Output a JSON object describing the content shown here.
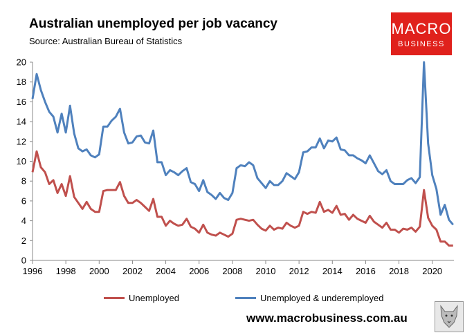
{
  "header": {
    "title": "Australian unemployed per job vacancy",
    "subtitle": "Source: Australian Bureau of Statistics"
  },
  "logo": {
    "line1": "MACRO",
    "line2": "BUSINESS"
  },
  "footer": {
    "url": "www.macrobusiness.com.au"
  },
  "colors": {
    "unemployed": "#c0504d",
    "underemployed": "#4f81bd",
    "logo_bg": "#e0211c"
  },
  "chart_data": {
    "type": "line",
    "title": "Australian unemployed per job vacancy",
    "xlim": [
      1996,
      2021.3
    ],
    "ylim": [
      0,
      20
    ],
    "xticks": [
      1996,
      1998,
      2000,
      2002,
      2004,
      2006,
      2008,
      2010,
      2012,
      2014,
      2016,
      2018,
      2020
    ],
    "yticks": [
      0,
      2,
      4,
      6,
      8,
      10,
      12,
      14,
      16,
      18,
      20
    ],
    "grid": false,
    "legend": "bottom",
    "series": [
      {
        "name": "Unemployed",
        "color": "#c0504d",
        "points": [
          [
            1996.0,
            8.9
          ],
          [
            1996.25,
            11.0
          ],
          [
            1996.5,
            9.4
          ],
          [
            1996.75,
            8.9
          ],
          [
            1997.0,
            7.7
          ],
          [
            1997.25,
            8.1
          ],
          [
            1997.5,
            6.8
          ],
          [
            1997.75,
            7.7
          ],
          [
            1998.0,
            6.5
          ],
          [
            1998.25,
            8.5
          ],
          [
            1998.5,
            6.4
          ],
          [
            1998.75,
            5.8
          ],
          [
            1999.0,
            5.2
          ],
          [
            1999.25,
            5.9
          ],
          [
            1999.5,
            5.2
          ],
          [
            1999.75,
            4.9
          ],
          [
            2000.0,
            4.9
          ],
          [
            2000.25,
            7.0
          ],
          [
            2000.5,
            7.1
          ],
          [
            2000.75,
            7.1
          ],
          [
            2001.0,
            7.1
          ],
          [
            2001.25,
            7.9
          ],
          [
            2001.5,
            6.5
          ],
          [
            2001.75,
            5.8
          ],
          [
            2002.0,
            5.8
          ],
          [
            2002.25,
            6.1
          ],
          [
            2002.5,
            5.8
          ],
          [
            2002.75,
            5.4
          ],
          [
            2003.0,
            5.0
          ],
          [
            2003.25,
            6.2
          ],
          [
            2003.5,
            4.4
          ],
          [
            2003.75,
            4.4
          ],
          [
            2004.0,
            3.5
          ],
          [
            2004.25,
            4.0
          ],
          [
            2004.5,
            3.7
          ],
          [
            2004.75,
            3.5
          ],
          [
            2005.0,
            3.6
          ],
          [
            2005.25,
            4.2
          ],
          [
            2005.5,
            3.4
          ],
          [
            2005.75,
            3.2
          ],
          [
            2006.0,
            2.8
          ],
          [
            2006.25,
            3.6
          ],
          [
            2006.5,
            2.8
          ],
          [
            2006.75,
            2.6
          ],
          [
            2007.0,
            2.5
          ],
          [
            2007.25,
            2.8
          ],
          [
            2007.5,
            2.6
          ],
          [
            2007.75,
            2.4
          ],
          [
            2008.0,
            2.7
          ],
          [
            2008.25,
            4.1
          ],
          [
            2008.5,
            4.2
          ],
          [
            2008.75,
            4.1
          ],
          [
            2009.0,
            4.0
          ],
          [
            2009.25,
            4.1
          ],
          [
            2009.5,
            3.6
          ],
          [
            2009.75,
            3.2
          ],
          [
            2010.0,
            3.0
          ],
          [
            2010.25,
            3.5
          ],
          [
            2010.5,
            3.1
          ],
          [
            2010.75,
            3.3
          ],
          [
            2011.0,
            3.2
          ],
          [
            2011.25,
            3.8
          ],
          [
            2011.5,
            3.5
          ],
          [
            2011.75,
            3.3
          ],
          [
            2012.0,
            3.5
          ],
          [
            2012.25,
            4.9
          ],
          [
            2012.5,
            4.7
          ],
          [
            2012.75,
            4.9
          ],
          [
            2013.0,
            4.8
          ],
          [
            2013.25,
            5.9
          ],
          [
            2013.5,
            4.9
          ],
          [
            2013.75,
            5.1
          ],
          [
            2014.0,
            4.8
          ],
          [
            2014.25,
            5.5
          ],
          [
            2014.5,
            4.6
          ],
          [
            2014.75,
            4.7
          ],
          [
            2015.0,
            4.1
          ],
          [
            2015.25,
            4.6
          ],
          [
            2015.5,
            4.2
          ],
          [
            2015.75,
            4.0
          ],
          [
            2016.0,
            3.8
          ],
          [
            2016.25,
            4.5
          ],
          [
            2016.5,
            3.9
          ],
          [
            2016.75,
            3.6
          ],
          [
            2017.0,
            3.3
          ],
          [
            2017.25,
            3.8
          ],
          [
            2017.5,
            3.1
          ],
          [
            2017.75,
            3.1
          ],
          [
            2018.0,
            2.8
          ],
          [
            2018.25,
            3.2
          ],
          [
            2018.5,
            3.1
          ],
          [
            2018.75,
            3.3
          ],
          [
            2019.0,
            2.9
          ],
          [
            2019.25,
            3.4
          ],
          [
            2019.5,
            7.1
          ],
          [
            2019.75,
            4.3
          ],
          [
            2020.0,
            3.5
          ],
          [
            2020.25,
            3.1
          ],
          [
            2020.5,
            1.9
          ],
          [
            2020.75,
            1.9
          ],
          [
            2021.0,
            1.5
          ],
          [
            2021.25,
            1.5
          ]
        ]
      },
      {
        "name": "Unemployed & underemployed",
        "color": "#4f81bd",
        "points": [
          [
            1996.0,
            16.3
          ],
          [
            1996.25,
            18.8
          ],
          [
            1996.5,
            17.2
          ],
          [
            1996.75,
            16.0
          ],
          [
            1997.0,
            15.0
          ],
          [
            1997.25,
            14.5
          ],
          [
            1997.5,
            12.9
          ],
          [
            1997.75,
            14.8
          ],
          [
            1998.0,
            12.9
          ],
          [
            1998.25,
            15.6
          ],
          [
            1998.5,
            12.8
          ],
          [
            1998.75,
            11.3
          ],
          [
            1999.0,
            11.0
          ],
          [
            1999.25,
            11.2
          ],
          [
            1999.5,
            10.6
          ],
          [
            1999.75,
            10.4
          ],
          [
            2000.0,
            10.7
          ],
          [
            2000.25,
            13.5
          ],
          [
            2000.5,
            13.5
          ],
          [
            2000.75,
            14.1
          ],
          [
            2001.0,
            14.5
          ],
          [
            2001.25,
            15.3
          ],
          [
            2001.5,
            12.9
          ],
          [
            2001.75,
            11.8
          ],
          [
            2002.0,
            11.9
          ],
          [
            2002.25,
            12.5
          ],
          [
            2002.5,
            12.6
          ],
          [
            2002.75,
            11.9
          ],
          [
            2003.0,
            11.8
          ],
          [
            2003.25,
            13.1
          ],
          [
            2003.5,
            9.9
          ],
          [
            2003.75,
            9.9
          ],
          [
            2004.0,
            8.6
          ],
          [
            2004.25,
            9.1
          ],
          [
            2004.5,
            8.9
          ],
          [
            2004.75,
            8.6
          ],
          [
            2005.0,
            9.0
          ],
          [
            2005.25,
            9.3
          ],
          [
            2005.5,
            7.9
          ],
          [
            2005.75,
            7.7
          ],
          [
            2006.0,
            7.0
          ],
          [
            2006.25,
            8.1
          ],
          [
            2006.5,
            6.9
          ],
          [
            2006.75,
            6.6
          ],
          [
            2007.0,
            6.2
          ],
          [
            2007.25,
            6.8
          ],
          [
            2007.5,
            6.3
          ],
          [
            2007.75,
            6.1
          ],
          [
            2008.0,
            6.8
          ],
          [
            2008.25,
            9.3
          ],
          [
            2008.5,
            9.6
          ],
          [
            2008.75,
            9.5
          ],
          [
            2009.0,
            9.9
          ],
          [
            2009.25,
            9.6
          ],
          [
            2009.5,
            8.3
          ],
          [
            2009.75,
            7.8
          ],
          [
            2010.0,
            7.3
          ],
          [
            2010.25,
            8.0
          ],
          [
            2010.5,
            7.6
          ],
          [
            2010.75,
            7.6
          ],
          [
            2011.0,
            8.0
          ],
          [
            2011.25,
            8.8
          ],
          [
            2011.5,
            8.5
          ],
          [
            2011.75,
            8.2
          ],
          [
            2012.0,
            8.9
          ],
          [
            2012.25,
            10.9
          ],
          [
            2012.5,
            11.0
          ],
          [
            2012.75,
            11.4
          ],
          [
            2013.0,
            11.4
          ],
          [
            2013.25,
            12.3
          ],
          [
            2013.5,
            11.3
          ],
          [
            2013.75,
            12.1
          ],
          [
            2014.0,
            12.0
          ],
          [
            2014.25,
            12.4
          ],
          [
            2014.5,
            11.2
          ],
          [
            2014.75,
            11.1
          ],
          [
            2015.0,
            10.6
          ],
          [
            2015.25,
            10.6
          ],
          [
            2015.5,
            10.3
          ],
          [
            2015.75,
            10.1
          ],
          [
            2016.0,
            9.8
          ],
          [
            2016.25,
            10.6
          ],
          [
            2016.5,
            9.8
          ],
          [
            2016.75,
            9.0
          ],
          [
            2017.0,
            8.7
          ],
          [
            2017.25,
            9.1
          ],
          [
            2017.5,
            8.0
          ],
          [
            2017.75,
            7.7
          ],
          [
            2018.0,
            7.7
          ],
          [
            2018.25,
            7.7
          ],
          [
            2018.5,
            8.1
          ],
          [
            2018.75,
            8.3
          ],
          [
            2019.0,
            7.8
          ],
          [
            2019.25,
            8.4
          ],
          [
            2019.5,
            20.0
          ],
          [
            2019.75,
            11.8
          ],
          [
            2020.0,
            8.6
          ],
          [
            2020.25,
            7.2
          ],
          [
            2020.5,
            4.6
          ],
          [
            2020.75,
            5.6
          ],
          [
            2021.0,
            4.1
          ],
          [
            2021.25,
            3.6
          ]
        ]
      }
    ]
  }
}
